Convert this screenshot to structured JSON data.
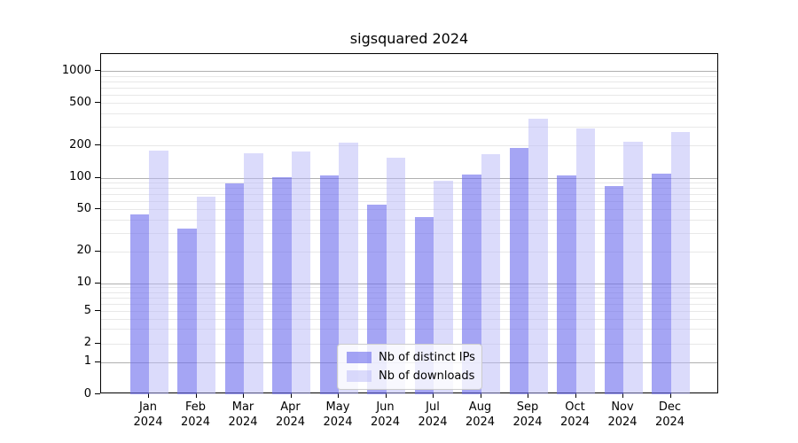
{
  "chart_data": {
    "type": "bar",
    "title": "sigsquared 2024",
    "categories": [
      "Jan 2024",
      "Feb 2024",
      "Mar 2024",
      "Apr 2024",
      "May 2024",
      "Jun 2024",
      "Jul 2024",
      "Aug 2024",
      "Sep 2024",
      "Oct 2024",
      "Nov 2024",
      "Dec 2024"
    ],
    "series": [
      {
        "name": "Nb of distinct IPs",
        "color": "rgba(110,110,238,0.62)",
        "values": [
          45,
          33,
          88,
          102,
          105,
          55,
          42,
          108,
          189,
          104,
          84,
          110
        ]
      },
      {
        "name": "Nb of downloads",
        "color": "rgba(186,186,248,0.52)",
        "values": [
          180,
          66,
          170,
          177,
          213,
          155,
          93,
          167,
          355,
          287,
          215,
          270
        ]
      }
    ],
    "xlabel": "",
    "ylabel": "",
    "yscale": "symlog",
    "y_ticks": [
      0,
      1,
      2,
      5,
      10,
      20,
      50,
      100,
      200,
      500,
      1000
    ],
    "ylim": [
      0,
      1400
    ],
    "grid": true,
    "legend_position": "lower center"
  },
  "colors": {
    "major_grid": "#b0b0b0",
    "minor_grid": "#e8e8e8",
    "axis": "#000000",
    "legend_border": "#cccccc",
    "legend_bg": "rgba(255,255,255,0.8)"
  }
}
